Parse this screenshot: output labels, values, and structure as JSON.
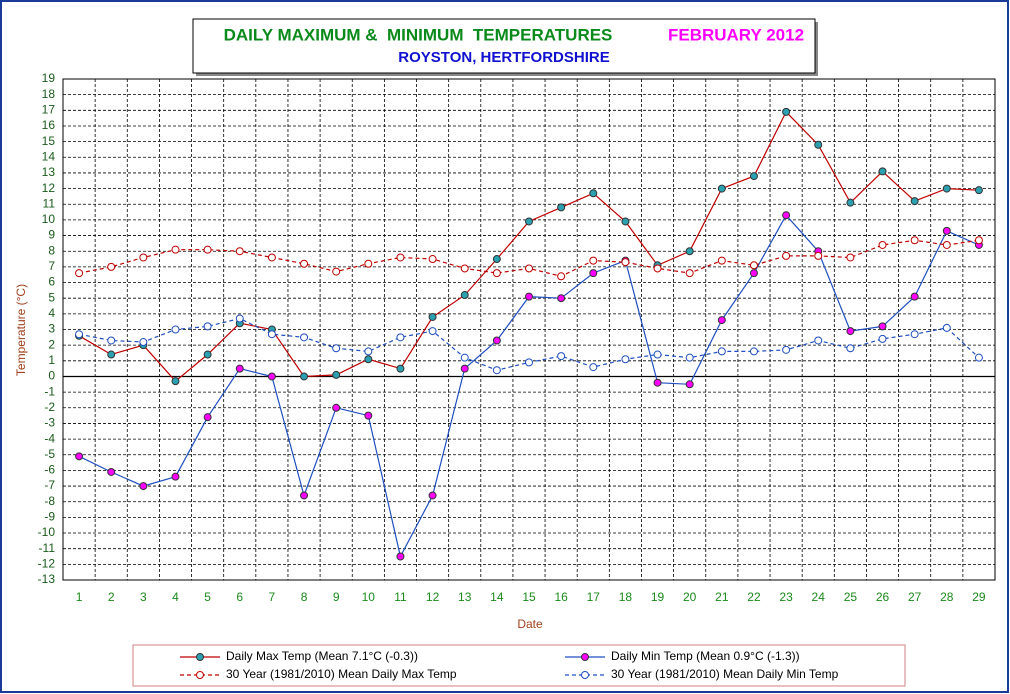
{
  "chart_data": {
    "type": "line",
    "title": "DAILY MAXIMUM &  MINIMUM  TEMPERATURES",
    "title_period": "FEBRUARY 2012",
    "subtitle": "ROYSTON, HERTFORDSHIRE",
    "x_label": "Date",
    "y_label": "Temperature (°C)",
    "categories": [
      "1",
      "2",
      "3",
      "4",
      "5",
      "6",
      "7",
      "8",
      "9",
      "10",
      "11",
      "12",
      "13",
      "14",
      "15",
      "16",
      "17",
      "18",
      "19",
      "20",
      "21",
      "22",
      "23",
      "24",
      "25",
      "26",
      "27",
      "28",
      "29"
    ],
    "ylim": [
      -13,
      19
    ],
    "yticks": [
      -13,
      -12,
      -11,
      -10,
      -9,
      -8,
      -7,
      -6,
      -5,
      -4,
      -3,
      -2,
      -1,
      0,
      1,
      2,
      3,
      4,
      5,
      6,
      7,
      8,
      9,
      10,
      11,
      12,
      13,
      14,
      15,
      16,
      17,
      18,
      19
    ],
    "grid": true,
    "series": [
      {
        "name": "Daily Max Temp (Mean 7.1°C (-0.3))",
        "color": "#c00000",
        "marker_color": "#2aa0b0",
        "line_style": "solid",
        "values": [
          2.6,
          1.4,
          2.0,
          -0.3,
          1.4,
          3.4,
          3.0,
          0.0,
          0.1,
          1.1,
          0.5,
          3.8,
          5.2,
          7.5,
          9.9,
          10.8,
          11.7,
          9.9,
          7.1,
          8.0,
          12.0,
          12.8,
          16.9,
          14.8,
          11.1,
          13.1,
          11.2,
          12.0,
          11.9
        ]
      },
      {
        "name": "Daily Min Temp (Mean 0.9°C (-1.3))",
        "color": "#1f4fc0",
        "marker_color": "#ff00ff",
        "line_style": "solid",
        "values": [
          -5.1,
          -6.1,
          -7.0,
          -6.4,
          -2.6,
          0.5,
          0.0,
          -7.6,
          -2.0,
          -2.5,
          -11.5,
          -7.6,
          0.5,
          2.3,
          5.1,
          5.0,
          6.6,
          7.4,
          -0.4,
          -0.5,
          3.6,
          6.6,
          10.3,
          8.0,
          2.9,
          3.2,
          5.1,
          9.3,
          8.4
        ]
      },
      {
        "name": "30 Year (1981/2010) Mean Daily Max Temp",
        "color": "#c00000",
        "marker_color": "#ffffff",
        "line_style": "dashed",
        "values": [
          6.6,
          7.0,
          7.6,
          8.1,
          8.1,
          8.0,
          7.6,
          7.2,
          6.7,
          7.2,
          7.6,
          7.5,
          6.9,
          6.6,
          6.9,
          6.4,
          7.4,
          7.3,
          6.9,
          6.6,
          7.4,
          7.1,
          7.7,
          7.7,
          7.6,
          8.4,
          8.7,
          8.4,
          8.7
        ]
      },
      {
        "name": "30 Year (1981/2010) Mean Daily Min Temp",
        "color": "#1f4fc0",
        "marker_color": "#ffffff",
        "line_style": "dashed",
        "values": [
          2.7,
          2.3,
          2.2,
          3.0,
          3.2,
          3.7,
          2.7,
          2.5,
          1.8,
          1.6,
          2.5,
          2.9,
          1.2,
          0.4,
          0.9,
          1.3,
          0.6,
          1.1,
          1.4,
          1.2,
          1.6,
          1.6,
          1.7,
          2.3,
          1.8,
          2.4,
          2.7,
          3.1,
          1.2
        ]
      }
    ]
  }
}
